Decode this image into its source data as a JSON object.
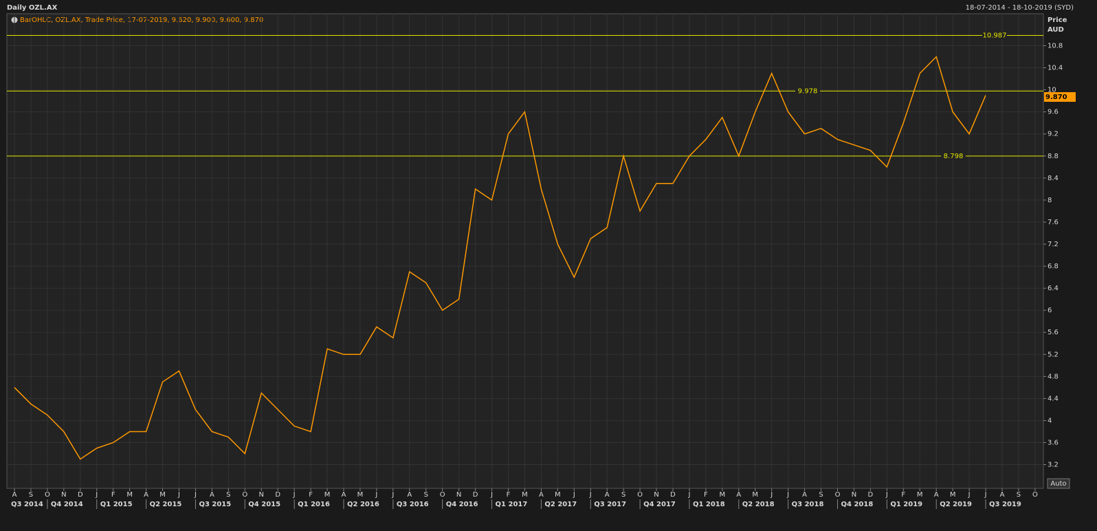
{
  "chart_data": {
    "type": "line",
    "title": "Daily OZL.AX",
    "date_range": "18-07-2014 - 18-10-2019 (SYD)",
    "legend_text": "BarOHLC, OZL.AX, Trade Price, 17-07-2019, 9.620, 9.900, 9.600, 9.870",
    "y_axis_label": "Price",
    "y_axis_unit": "AUD",
    "auto_button": "Auto",
    "categories": [
      "A",
      "S",
      "O",
      "N",
      "D",
      "J",
      "F",
      "M",
      "A",
      "M",
      "J",
      "J",
      "A",
      "S",
      "O",
      "N",
      "D",
      "J",
      "F",
      "M",
      "A",
      "M",
      "J",
      "J",
      "A",
      "S",
      "O",
      "N",
      "D",
      "J",
      "F",
      "M",
      "A",
      "M",
      "J",
      "J",
      "A",
      "S",
      "O",
      "N",
      "D",
      "J",
      "F",
      "M",
      "A",
      "M",
      "J",
      "J",
      "A",
      "S",
      "O",
      "N",
      "D",
      "J",
      "F",
      "M",
      "A",
      "M",
      "J",
      "J",
      "A",
      "S",
      "O"
    ],
    "quarters": [
      "Q3 2014",
      "Q4 2014",
      "Q1 2015",
      "Q2 2015",
      "Q3 2015",
      "Q4 2015",
      "Q1 2016",
      "Q2 2016",
      "Q3 2016",
      "Q4 2016",
      "Q1 2017",
      "Q2 2017",
      "Q3 2017",
      "Q4 2017",
      "Q1 2018",
      "Q2 2018",
      "Q3 2018",
      "Q4 2018",
      "Q1 2019",
      "Q2 2019",
      "Q3 2019"
    ],
    "series": [
      {
        "name": "OZL.AX",
        "color": "#ff9900",
        "values": [
          4.6,
          4.3,
          4.1,
          3.8,
          3.3,
          3.5,
          3.6,
          3.8,
          3.8,
          4.7,
          4.9,
          4.2,
          3.8,
          3.7,
          3.4,
          4.5,
          4.2,
          3.9,
          3.8,
          5.3,
          5.2,
          5.2,
          5.7,
          5.5,
          6.7,
          6.5,
          6.0,
          6.2,
          8.2,
          8.0,
          9.2,
          9.6,
          8.2,
          7.2,
          6.6,
          7.3,
          7.5,
          8.8,
          7.8,
          8.3,
          8.3,
          8.8,
          9.1,
          9.5,
          8.8,
          9.6,
          10.3,
          9.6,
          9.2,
          9.3,
          9.1,
          9.0,
          8.9,
          8.6,
          9.4,
          10.3,
          10.6,
          9.6,
          9.2,
          9.9,
          null,
          null,
          null
        ]
      }
    ],
    "levels": [
      {
        "value": 10.987,
        "label": "10.987"
      },
      {
        "value": 9.978,
        "label": "9.978"
      },
      {
        "value": 8.798,
        "label": "8.798"
      }
    ],
    "level_color": "#e6e600",
    "last_price": {
      "value": 9.87,
      "label": "9.870"
    },
    "ylim": [
      2.77,
      11.38
    ],
    "yticks": [
      3.2,
      3.6,
      4,
      4.4,
      4.8,
      5.2,
      5.6,
      6,
      6.4,
      6.8,
      7.2,
      7.6,
      8,
      8.4,
      8.8,
      9.2,
      9.6,
      10,
      10.4,
      10.8
    ],
    "grid": true
  }
}
